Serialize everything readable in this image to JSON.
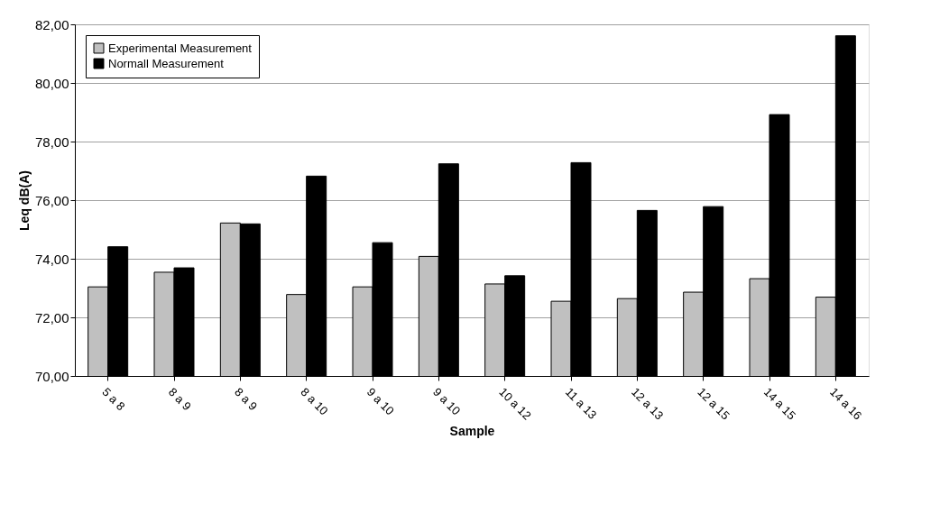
{
  "chart_data": {
    "type": "bar",
    "xlabel": "Sample",
    "ylabel": "Leq dB(A)",
    "categories": [
      "5 a 8",
      "8 a 9",
      "8 a 9",
      "8 a 10",
      "9 a 10",
      "9 a 10",
      "10 a 12",
      "11 a 13",
      "12 a 13",
      "12 a 15",
      "14 a 15",
      "14 a 16"
    ],
    "series": [
      {
        "name": "Experimental Measurement",
        "color": "#c0c0c0",
        "values": [
          73.04,
          73.54,
          75.22,
          72.78,
          73.04,
          74.08,
          73.14,
          72.55,
          72.64,
          72.86,
          73.32,
          72.69
        ]
      },
      {
        "name": "Normall Measurement",
        "color": "#000000",
        "values": [
          74.41,
          73.69,
          75.19,
          76.82,
          74.55,
          77.24,
          73.42,
          77.28,
          75.65,
          75.78,
          78.92,
          81.61
        ]
      }
    ],
    "ylim": [
      70,
      82
    ],
    "yticks": [
      {
        "value": 70,
        "label": "70,00"
      },
      {
        "value": 72,
        "label": "72,00"
      },
      {
        "value": 74,
        "label": "74,00"
      },
      {
        "value": 76,
        "label": "76,00"
      },
      {
        "value": 78,
        "label": "78,00"
      },
      {
        "value": 80,
        "label": "80,00"
      },
      {
        "value": 82,
        "label": "82,00"
      }
    ],
    "grid": "y",
    "legend": "top left"
  }
}
